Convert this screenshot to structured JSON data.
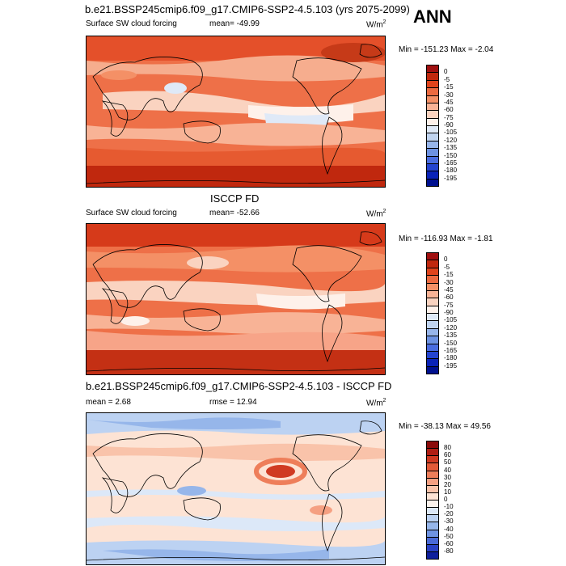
{
  "season": "ANN",
  "units_base": "W/m",
  "units_exp": "2",
  "panels": [
    {
      "id": "model",
      "title": "b.e21.BSSP245cmip6.f09_g17.CMIP6-SSP2-4.5.103 (yrs 2075-2099)",
      "variable": "Surface SW cloud forcing",
      "mean": "mean= -49.99",
      "minmax": "Min = -151.23 Max = -2.04",
      "levels": [
        "0",
        "-5",
        "-15",
        "-30",
        "-45",
        "-60",
        "-75",
        "-90",
        "-105",
        "-120",
        "-135",
        "-150",
        "-165",
        "-180",
        "-195"
      ],
      "colors": [
        "#a01010",
        "#c0280e",
        "#e0441c",
        "#ec6a40",
        "#f49066",
        "#f8b396",
        "#fad3c0",
        "#fef1ea",
        "#dfe9f7",
        "#c0d4f0",
        "#97b5ea",
        "#6d92e2",
        "#4a6de0",
        "#2444d0",
        "#0a23b8",
        "#00108f"
      ]
    },
    {
      "id": "obs",
      "center_title": "ISCCP FD",
      "variable": "Surface SW cloud forcing",
      "mean": "mean= -52.66",
      "minmax": "Min = -116.93 Max = -1.81",
      "levels": [
        "0",
        "-5",
        "-15",
        "-30",
        "-45",
        "-60",
        "-75",
        "-90",
        "-105",
        "-120",
        "-135",
        "-150",
        "-165",
        "-180",
        "-195"
      ],
      "colors": [
        "#a01010",
        "#c0280e",
        "#e0441c",
        "#ec6a40",
        "#f49066",
        "#f8b396",
        "#fad3c0",
        "#fef1ea",
        "#dfe9f7",
        "#c0d4f0",
        "#97b5ea",
        "#6d92e2",
        "#4a6de0",
        "#2444d0",
        "#0a23b8",
        "#00108f"
      ]
    },
    {
      "id": "diff",
      "title": "b.e21.BSSP245cmip6.f09_g17.CMIP6-SSP2-4.5.103 - ISCCP FD",
      "mean": "mean =   2.68",
      "rmse": "rmse =  12.94",
      "minmax": "Min = -38.13 Max = 49.56",
      "levels": [
        "80",
        "60",
        "50",
        "40",
        "30",
        "20",
        "10",
        "0",
        "-10",
        "-20",
        "-30",
        "-40",
        "-50",
        "-60",
        "-80"
      ],
      "colors": [
        "#8b0a0a",
        "#b01e14",
        "#d03a22",
        "#e35a38",
        "#ee7e5a",
        "#f5a082",
        "#f9c3aa",
        "#fde3d4",
        "#fbf2ec",
        "#dce8f8",
        "#bcd2f2",
        "#96b6ea",
        "#6e93e2",
        "#4a6ad6",
        "#2a42c4",
        "#0f1f9c"
      ]
    }
  ]
}
